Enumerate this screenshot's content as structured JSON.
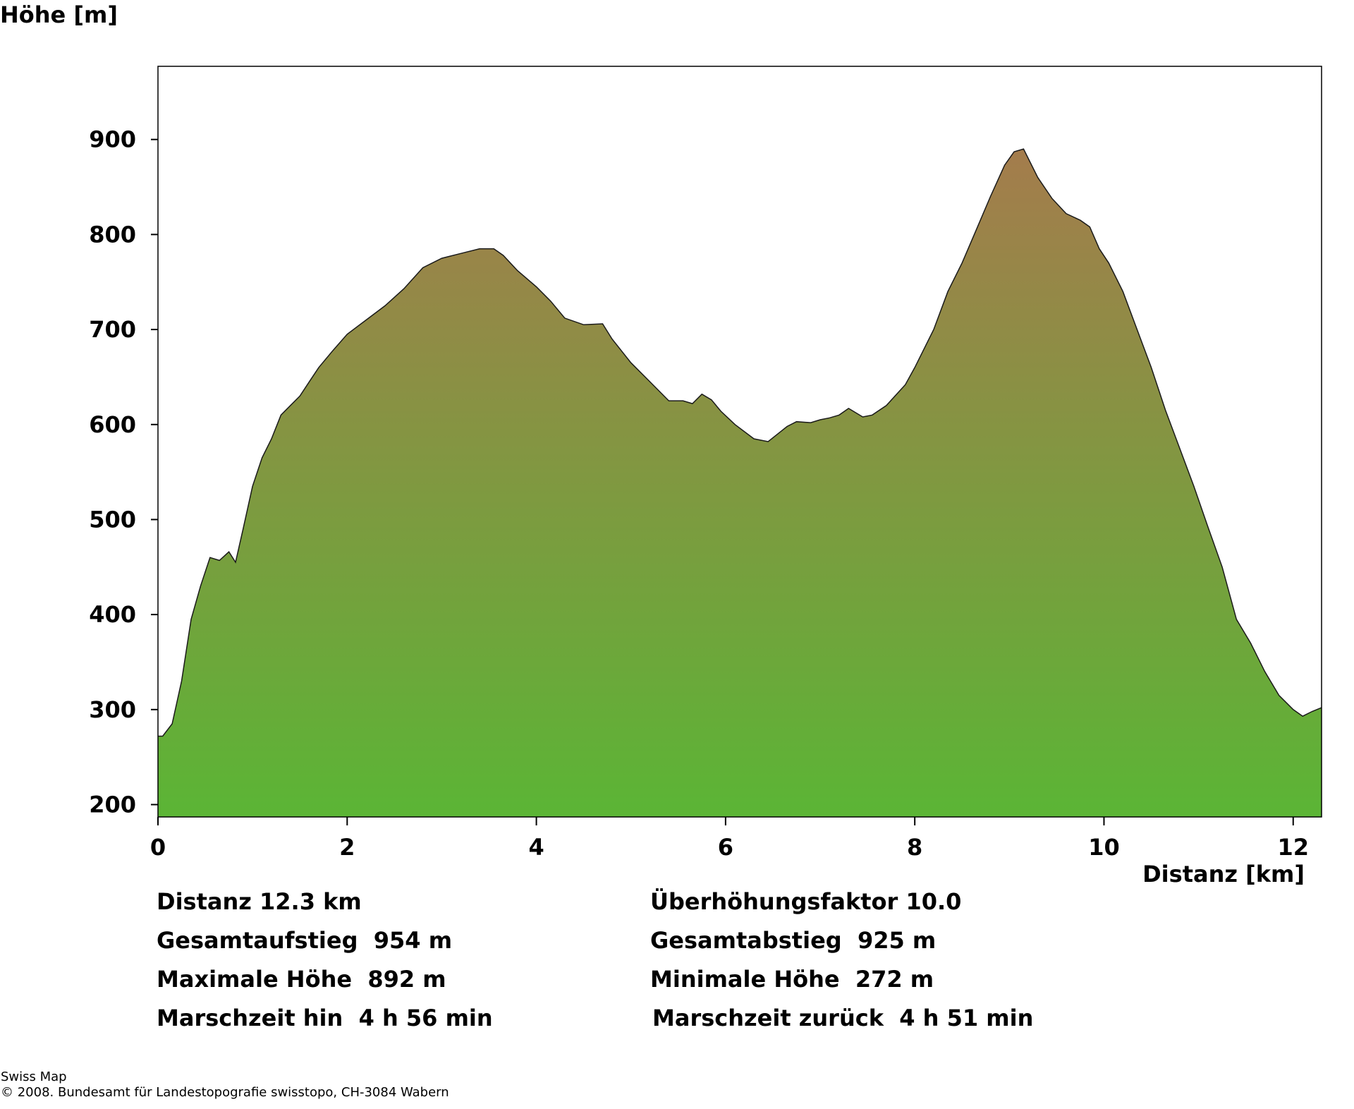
{
  "chart_data": {
    "type": "area",
    "ylabel": "Höhe [m]",
    "xlabel": "Distanz [km]",
    "xlim": [
      0,
      12.3
    ],
    "ylim": [
      187,
      977
    ],
    "x_ticks": [
      "0",
      "2",
      "4",
      "6",
      "8",
      "10",
      "12"
    ],
    "y_ticks": [
      "200",
      "300",
      "400",
      "500",
      "600",
      "700",
      "800",
      "900"
    ],
    "grid": false,
    "fill_gradient": {
      "top": "#a47c4c",
      "bottom": "#5bb535"
    },
    "line_color": "#1a1a1a",
    "x": [
      0,
      0.05,
      0.15,
      0.25,
      0.35,
      0.45,
      0.55,
      0.65,
      0.75,
      0.82,
      0.9,
      1.0,
      1.1,
      1.2,
      1.3,
      1.4,
      1.5,
      1.6,
      1.7,
      1.85,
      2.0,
      2.2,
      2.4,
      2.6,
      2.8,
      3.0,
      3.2,
      3.4,
      3.55,
      3.65,
      3.8,
      4.0,
      4.15,
      4.3,
      4.5,
      4.7,
      4.8,
      5.0,
      5.2,
      5.4,
      5.55,
      5.65,
      5.75,
      5.85,
      5.95,
      6.1,
      6.3,
      6.45,
      6.55,
      6.65,
      6.75,
      6.9,
      7.0,
      7.1,
      7.2,
      7.3,
      7.45,
      7.55,
      7.7,
      7.9,
      8.0,
      8.2,
      8.35,
      8.5,
      8.65,
      8.8,
      8.95,
      9.05,
      9.15,
      9.3,
      9.45,
      9.6,
      9.75,
      9.85,
      9.95,
      10.05,
      10.2,
      10.35,
      10.5,
      10.65,
      10.8,
      10.95,
      11.1,
      11.25,
      11.4,
      11.55,
      11.7,
      11.85,
      12.0,
      12.1,
      12.2,
      12.3
    ],
    "values": [
      272,
      272,
      285,
      330,
      395,
      430,
      460,
      457,
      466,
      455,
      490,
      535,
      565,
      585,
      610,
      620,
      630,
      645,
      660,
      678,
      695,
      710,
      725,
      743,
      765,
      775,
      780,
      785,
      785,
      778,
      762,
      745,
      730,
      712,
      705,
      706,
      690,
      665,
      645,
      625,
      625,
      622,
      632,
      626,
      614,
      600,
      585,
      582,
      590,
      598,
      603,
      602,
      605,
      607,
      610,
      617,
      608,
      610,
      620,
      642,
      660,
      700,
      740,
      770,
      805,
      840,
      873,
      887,
      890,
      860,
      838,
      822,
      815,
      808,
      785,
      770,
      740,
      700,
      660,
      615,
      575,
      535,
      492,
      450,
      395,
      370,
      340,
      315,
      300,
      293,
      298,
      302
    ]
  },
  "stats": {
    "distance": "Distanz 12.3 km",
    "exaggeration": "Überhöhungsfaktor 10.0",
    "ascent": "Gesamtaufstieg  954 m",
    "descent": "Gesamtabstieg  925 m",
    "max_height": "Maximale Höhe  892 m",
    "min_height": "Minimale Höhe  272 m",
    "time_forward": "Marschzeit hin  4 h 56 min",
    "time_back": "Marschzeit zurück  4 h 51 min"
  },
  "footer": {
    "line1": "Swiss Map",
    "line2": "© 2008. Bundesamt für Landestopografie swisstopo, CH-3084 Wabern"
  }
}
